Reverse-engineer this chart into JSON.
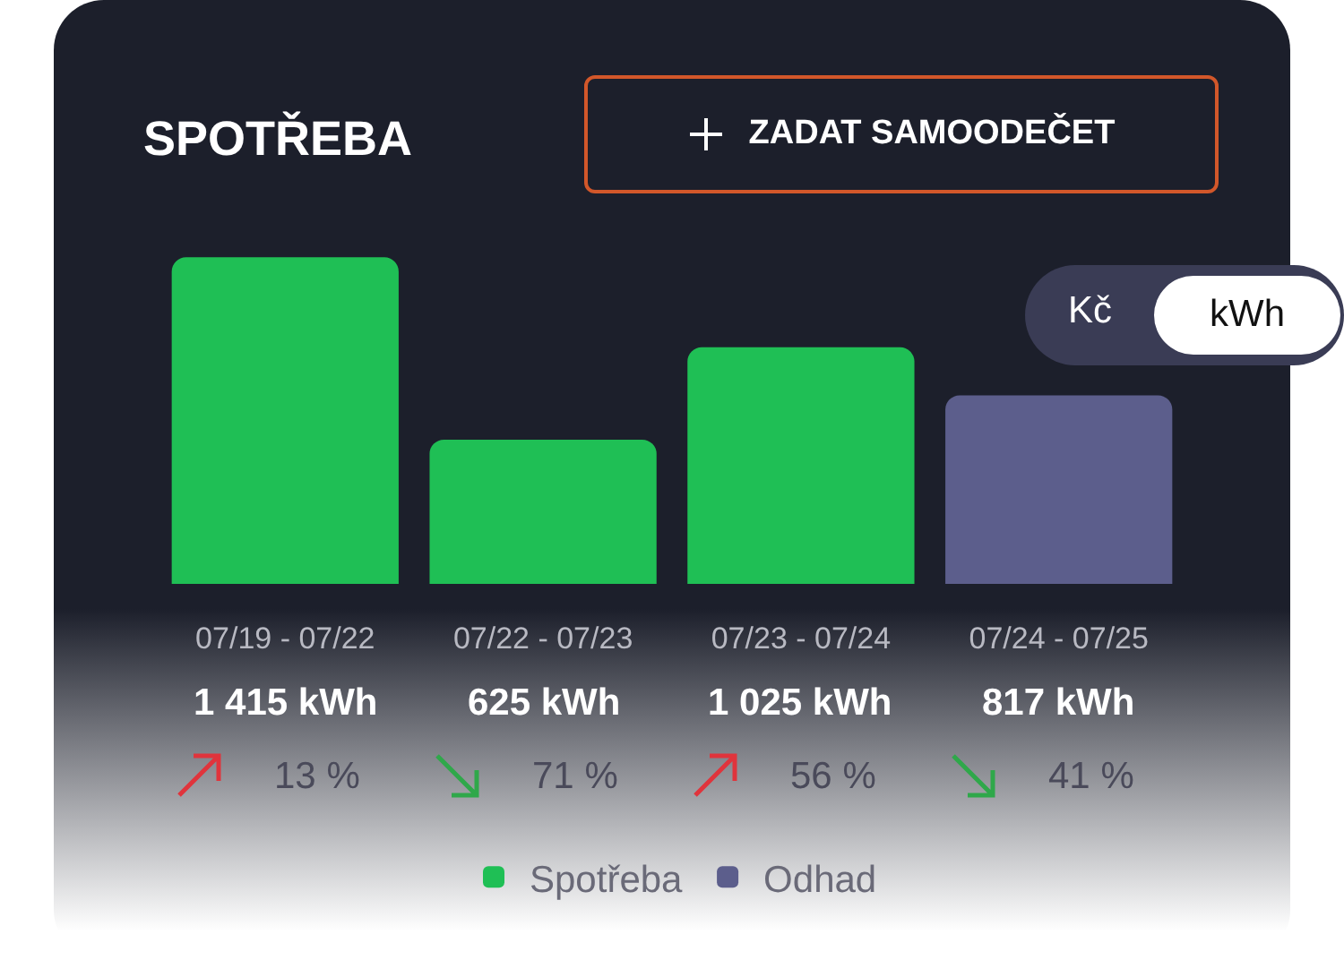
{
  "chart_data": {
    "type": "bar",
    "title": "SPOTŘEBA",
    "categories": [
      "07/19 - 07/22",
      "07/22 - 07/23",
      "07/23 - 07/24",
      "07/24 - 07/25"
    ],
    "series": [
      {
        "name": "Spotřeba",
        "color": "#1fbf55",
        "values": [
          1415,
          625,
          1025,
          null
        ],
        "value_labels": [
          "1 415 kWh",
          "625 kWh",
          "1 025 kWh",
          null
        ]
      },
      {
        "name": "Odhad",
        "color": "#5c5e8c",
        "values": [
          null,
          null,
          null,
          817
        ],
        "value_labels": [
          null,
          null,
          null,
          "817 kWh"
        ]
      }
    ],
    "annotations": [
      "ZADAT SAMOODEČET",
      "Kč",
      "kWh",
      "13 %",
      "71 %",
      "56 %",
      "41 %"
    ],
    "legend": "bottom"
  }
}
